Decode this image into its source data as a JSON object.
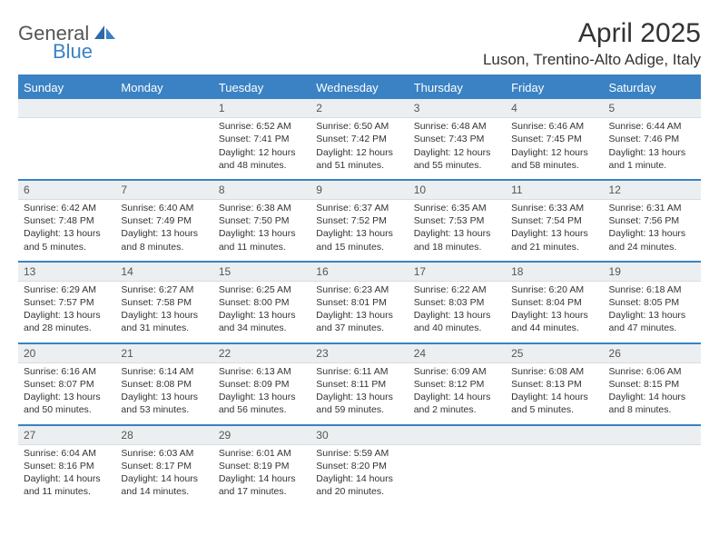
{
  "logo": {
    "text1": "General",
    "text2": "Blue"
  },
  "title": "April 2025",
  "location": "Luson, Trentino-Alto Adige, Italy",
  "colors": {
    "accent": "#3a82c4",
    "daynum_bg": "#eceff1",
    "text": "#333333"
  },
  "weekdays": [
    "Sunday",
    "Monday",
    "Tuesday",
    "Wednesday",
    "Thursday",
    "Friday",
    "Saturday"
  ],
  "weeks": [
    {
      "nums": [
        "",
        "",
        "1",
        "2",
        "3",
        "4",
        "5"
      ],
      "cells": [
        {
          "empty": true
        },
        {
          "empty": true
        },
        {
          "sunrise": "Sunrise: 6:52 AM",
          "sunset": "Sunset: 7:41 PM",
          "daylight": "Daylight: 12 hours and 48 minutes."
        },
        {
          "sunrise": "Sunrise: 6:50 AM",
          "sunset": "Sunset: 7:42 PM",
          "daylight": "Daylight: 12 hours and 51 minutes."
        },
        {
          "sunrise": "Sunrise: 6:48 AM",
          "sunset": "Sunset: 7:43 PM",
          "daylight": "Daylight: 12 hours and 55 minutes."
        },
        {
          "sunrise": "Sunrise: 6:46 AM",
          "sunset": "Sunset: 7:45 PM",
          "daylight": "Daylight: 12 hours and 58 minutes."
        },
        {
          "sunrise": "Sunrise: 6:44 AM",
          "sunset": "Sunset: 7:46 PM",
          "daylight": "Daylight: 13 hours and 1 minute."
        }
      ]
    },
    {
      "nums": [
        "6",
        "7",
        "8",
        "9",
        "10",
        "11",
        "12"
      ],
      "cells": [
        {
          "sunrise": "Sunrise: 6:42 AM",
          "sunset": "Sunset: 7:48 PM",
          "daylight": "Daylight: 13 hours and 5 minutes."
        },
        {
          "sunrise": "Sunrise: 6:40 AM",
          "sunset": "Sunset: 7:49 PM",
          "daylight": "Daylight: 13 hours and 8 minutes."
        },
        {
          "sunrise": "Sunrise: 6:38 AM",
          "sunset": "Sunset: 7:50 PM",
          "daylight": "Daylight: 13 hours and 11 minutes."
        },
        {
          "sunrise": "Sunrise: 6:37 AM",
          "sunset": "Sunset: 7:52 PM",
          "daylight": "Daylight: 13 hours and 15 minutes."
        },
        {
          "sunrise": "Sunrise: 6:35 AM",
          "sunset": "Sunset: 7:53 PM",
          "daylight": "Daylight: 13 hours and 18 minutes."
        },
        {
          "sunrise": "Sunrise: 6:33 AM",
          "sunset": "Sunset: 7:54 PM",
          "daylight": "Daylight: 13 hours and 21 minutes."
        },
        {
          "sunrise": "Sunrise: 6:31 AM",
          "sunset": "Sunset: 7:56 PM",
          "daylight": "Daylight: 13 hours and 24 minutes."
        }
      ]
    },
    {
      "nums": [
        "13",
        "14",
        "15",
        "16",
        "17",
        "18",
        "19"
      ],
      "cells": [
        {
          "sunrise": "Sunrise: 6:29 AM",
          "sunset": "Sunset: 7:57 PM",
          "daylight": "Daylight: 13 hours and 28 minutes."
        },
        {
          "sunrise": "Sunrise: 6:27 AM",
          "sunset": "Sunset: 7:58 PM",
          "daylight": "Daylight: 13 hours and 31 minutes."
        },
        {
          "sunrise": "Sunrise: 6:25 AM",
          "sunset": "Sunset: 8:00 PM",
          "daylight": "Daylight: 13 hours and 34 minutes."
        },
        {
          "sunrise": "Sunrise: 6:23 AM",
          "sunset": "Sunset: 8:01 PM",
          "daylight": "Daylight: 13 hours and 37 minutes."
        },
        {
          "sunrise": "Sunrise: 6:22 AM",
          "sunset": "Sunset: 8:03 PM",
          "daylight": "Daylight: 13 hours and 40 minutes."
        },
        {
          "sunrise": "Sunrise: 6:20 AM",
          "sunset": "Sunset: 8:04 PM",
          "daylight": "Daylight: 13 hours and 44 minutes."
        },
        {
          "sunrise": "Sunrise: 6:18 AM",
          "sunset": "Sunset: 8:05 PM",
          "daylight": "Daylight: 13 hours and 47 minutes."
        }
      ]
    },
    {
      "nums": [
        "20",
        "21",
        "22",
        "23",
        "24",
        "25",
        "26"
      ],
      "cells": [
        {
          "sunrise": "Sunrise: 6:16 AM",
          "sunset": "Sunset: 8:07 PM",
          "daylight": "Daylight: 13 hours and 50 minutes."
        },
        {
          "sunrise": "Sunrise: 6:14 AM",
          "sunset": "Sunset: 8:08 PM",
          "daylight": "Daylight: 13 hours and 53 minutes."
        },
        {
          "sunrise": "Sunrise: 6:13 AM",
          "sunset": "Sunset: 8:09 PM",
          "daylight": "Daylight: 13 hours and 56 minutes."
        },
        {
          "sunrise": "Sunrise: 6:11 AM",
          "sunset": "Sunset: 8:11 PM",
          "daylight": "Daylight: 13 hours and 59 minutes."
        },
        {
          "sunrise": "Sunrise: 6:09 AM",
          "sunset": "Sunset: 8:12 PM",
          "daylight": "Daylight: 14 hours and 2 minutes."
        },
        {
          "sunrise": "Sunrise: 6:08 AM",
          "sunset": "Sunset: 8:13 PM",
          "daylight": "Daylight: 14 hours and 5 minutes."
        },
        {
          "sunrise": "Sunrise: 6:06 AM",
          "sunset": "Sunset: 8:15 PM",
          "daylight": "Daylight: 14 hours and 8 minutes."
        }
      ]
    },
    {
      "nums": [
        "27",
        "28",
        "29",
        "30",
        "",
        "",
        ""
      ],
      "cells": [
        {
          "sunrise": "Sunrise: 6:04 AM",
          "sunset": "Sunset: 8:16 PM",
          "daylight": "Daylight: 14 hours and 11 minutes."
        },
        {
          "sunrise": "Sunrise: 6:03 AM",
          "sunset": "Sunset: 8:17 PM",
          "daylight": "Daylight: 14 hours and 14 minutes."
        },
        {
          "sunrise": "Sunrise: 6:01 AM",
          "sunset": "Sunset: 8:19 PM",
          "daylight": "Daylight: 14 hours and 17 minutes."
        },
        {
          "sunrise": "Sunrise: 5:59 AM",
          "sunset": "Sunset: 8:20 PM",
          "daylight": "Daylight: 14 hours and 20 minutes."
        },
        {
          "empty": true
        },
        {
          "empty": true
        },
        {
          "empty": true
        }
      ]
    }
  ]
}
